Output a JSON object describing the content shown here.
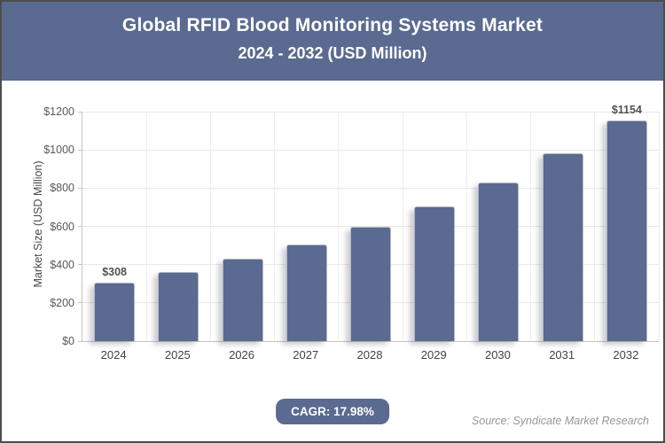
{
  "header": {
    "title": "Global RFID Blood Monitoring Systems Market",
    "subtitle": "2024 - 2032 (USD Million)"
  },
  "chart_data": {
    "type": "bar",
    "title": "Global RFID Blood Monitoring Systems Market 2024 - 2032 (USD Million)",
    "categories": [
      "2024",
      "2025",
      "2026",
      "2027",
      "2028",
      "2029",
      "2030",
      "2031",
      "2032"
    ],
    "values": [
      308,
      363,
      429,
      506,
      597,
      704,
      831,
      980,
      1154
    ],
    "bar_labels": [
      "$308",
      "",
      "",
      "",
      "",
      "",
      "",
      "",
      "$1154"
    ],
    "xlabel": "",
    "ylabel": "Market Size (USD Million)",
    "ylim": [
      0,
      1200
    ],
    "ytick_step": 200,
    "yticks": [
      "$0",
      "$200",
      "$400",
      "$600",
      "$800",
      "$1000",
      "$1200"
    ],
    "grid": true,
    "legend": false,
    "bar_color": "#5a6a90"
  },
  "footer": {
    "cagr_label": "CAGR: 17.98%",
    "source": "Source: Syndicate Market Research"
  },
  "colors": {
    "accent": "#5a6a90",
    "frame_border": "#4d4d4d",
    "gridline": "#e8e8e8",
    "axis_line": "#c4c4c4",
    "tick_text": "#55595e",
    "data_label_text": "#4f5255",
    "source_text": "#90989c",
    "bar_border": "#b3b8c2",
    "header_text": "#ffffff"
  }
}
